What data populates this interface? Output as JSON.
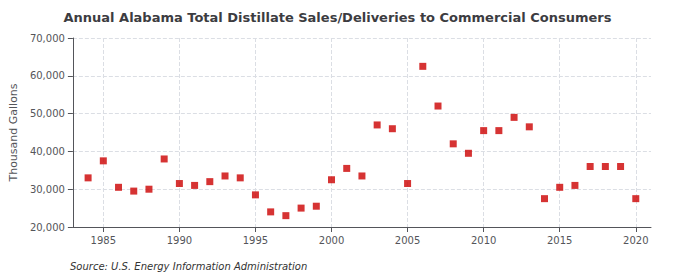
{
  "chart_data": {
    "type": "scatter",
    "title": "Annual Alabama Total Distillate Sales/Deliveries to Commercial Consumers",
    "ylabel": "Thousand Gallons",
    "annotations": [
      "Source: U.S. Energy Information Administration"
    ],
    "x": [
      1984,
      1985,
      1986,
      1987,
      1988,
      1989,
      1990,
      1991,
      1992,
      1993,
      1994,
      1995,
      1996,
      1997,
      1998,
      1999,
      2000,
      2001,
      2002,
      2003,
      2004,
      2005,
      2006,
      2007,
      2008,
      2009,
      2010,
      2011,
      2012,
      2013,
      2014,
      2015,
      2016,
      2017,
      2018,
      2019,
      2020
    ],
    "values": [
      33000,
      37500,
      30500,
      29500,
      30000,
      38000,
      31500,
      31000,
      32000,
      33500,
      33000,
      28500,
      24000,
      23000,
      25000,
      25500,
      32500,
      35500,
      33500,
      47000,
      46000,
      31500,
      62500,
      52000,
      42000,
      39500,
      45500,
      45500,
      49000,
      46500,
      27500,
      30500,
      31000,
      36000,
      36000,
      36000,
      27500
    ],
    "color": "#cc0000",
    "marker": "square",
    "xlim": [
      1983,
      2021
    ],
    "xticks": [
      1985,
      1990,
      1995,
      2000,
      2005,
      2010,
      2015,
      2020
    ],
    "ylim": [
      20000,
      70000
    ],
    "yticks": [
      {
        "value": 20000,
        "label": "20,000"
      },
      {
        "value": 30000,
        "label": "30,000"
      },
      {
        "value": 40000,
        "label": "40,000"
      },
      {
        "value": 50000,
        "label": "50,000"
      },
      {
        "value": 60000,
        "label": "60,000"
      },
      {
        "value": 70000,
        "label": "70,000"
      }
    ],
    "grid": true
  }
}
